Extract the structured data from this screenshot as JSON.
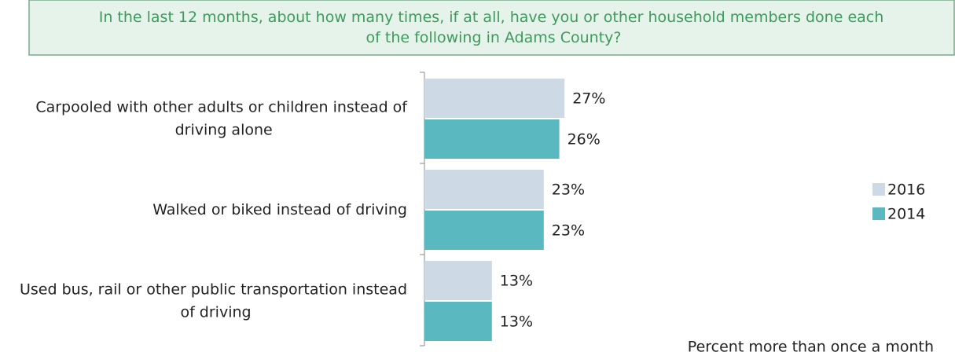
{
  "chart_data": {
    "type": "hbar",
    "title": "In the last 12 months, about how many times, if at all, have you or other household members done each of the following in Adams County?",
    "xlabel": "Percent more than once a month",
    "categories": [
      "Carpooled with other adults or children instead of driving alone",
      "Walked or biked instead of driving",
      "Used bus, rail or other public transportation instead of driving"
    ],
    "series": [
      {
        "name": "2016",
        "color": "#cdd9e5",
        "values": [
          27,
          23,
          13
        ],
        "value_labels": [
          "27%",
          "23%",
          "13%"
        ]
      },
      {
        "name": "2014",
        "color": "#5ab8c0",
        "values": [
          26,
          23,
          13
        ],
        "value_labels": [
          "26%",
          "23%",
          "13%"
        ]
      }
    ],
    "xlim": [
      0,
      100
    ],
    "legend": "right"
  }
}
